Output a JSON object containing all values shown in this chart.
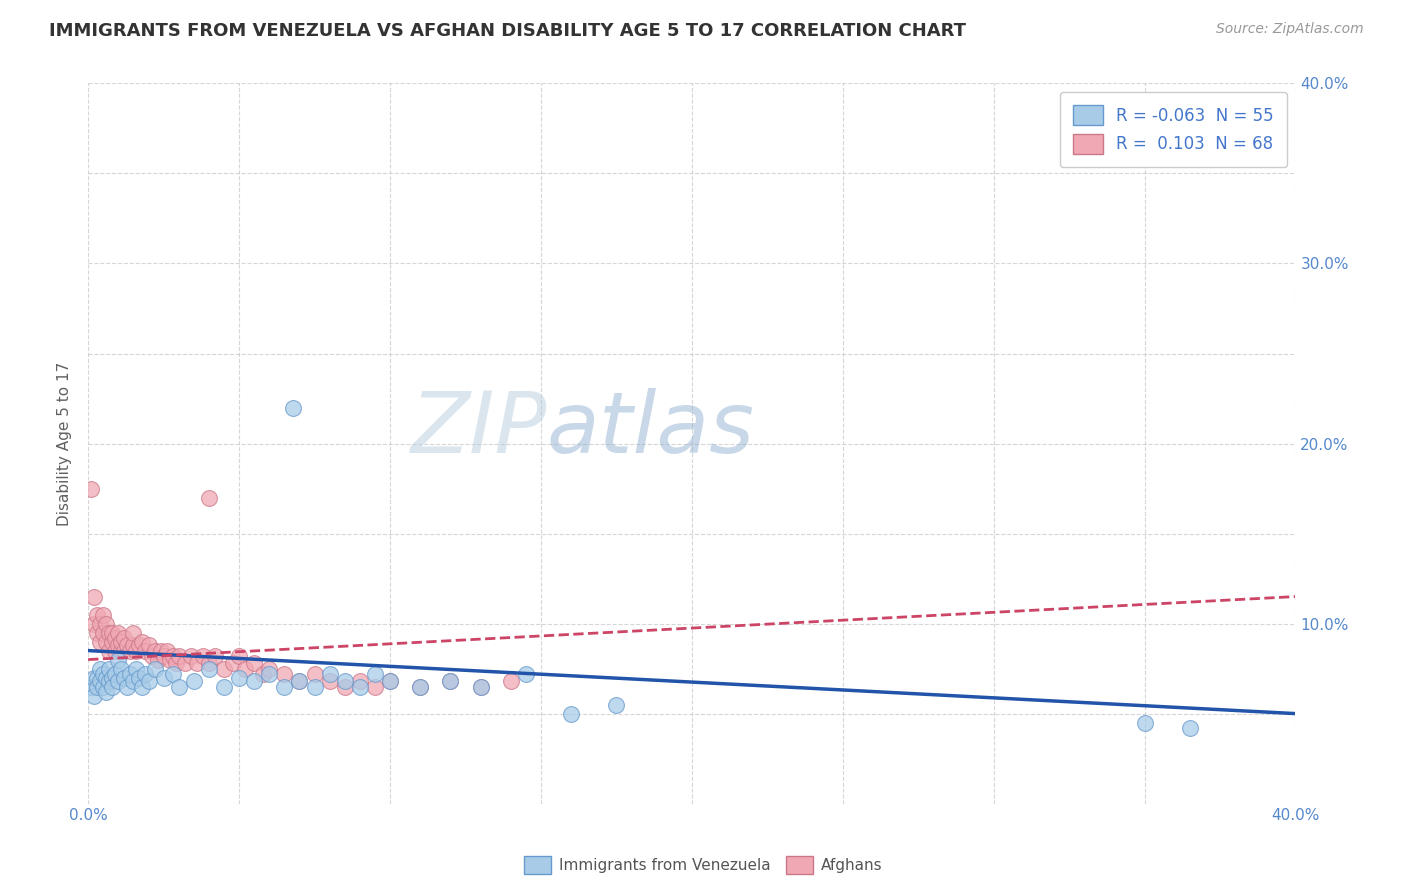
{
  "title": "IMMIGRANTS FROM VENEZUELA VS AFGHAN DISABILITY AGE 5 TO 17 CORRELATION CHART",
  "source": "Source: ZipAtlas.com",
  "ylabel": "Disability Age 5 to 17",
  "xlim": [
    0.0,
    0.4
  ],
  "ylim": [
    0.0,
    0.4
  ],
  "xticks": [
    0.0,
    0.05,
    0.1,
    0.15,
    0.2,
    0.25,
    0.3,
    0.35,
    0.4
  ],
  "yticks": [
    0.0,
    0.05,
    0.1,
    0.15,
    0.2,
    0.25,
    0.3,
    0.35,
    0.4
  ],
  "watermark_zip": "ZIP",
  "watermark_atlas": "atlas",
  "venezuela_color": "#a8cce8",
  "venezuela_edge": "#6699cc",
  "afghan_color": "#f0a8b4",
  "afghan_edge": "#cc7788",
  "venezuela_line_color": "#2255aa",
  "afghan_line_color": "#cc4466",
  "background_color": "#ffffff",
  "grid_color": "#cccccc",
  "title_color": "#333333",
  "tick_color": "#5588cc",
  "venezuela_scatter": [
    [
      0.001,
      0.065
    ],
    [
      0.002,
      0.07
    ],
    [
      0.002,
      0.06
    ],
    [
      0.003,
      0.07
    ],
    [
      0.003,
      0.065
    ],
    [
      0.004,
      0.075
    ],
    [
      0.004,
      0.068
    ],
    [
      0.005,
      0.072
    ],
    [
      0.005,
      0.065
    ],
    [
      0.006,
      0.07
    ],
    [
      0.006,
      0.062
    ],
    [
      0.007,
      0.068
    ],
    [
      0.007,
      0.075
    ],
    [
      0.008,
      0.07
    ],
    [
      0.008,
      0.065
    ],
    [
      0.009,
      0.072
    ],
    [
      0.01,
      0.068
    ],
    [
      0.01,
      0.08
    ],
    [
      0.011,
      0.075
    ],
    [
      0.012,
      0.07
    ],
    [
      0.013,
      0.065
    ],
    [
      0.014,
      0.072
    ],
    [
      0.015,
      0.068
    ],
    [
      0.016,
      0.075
    ],
    [
      0.017,
      0.07
    ],
    [
      0.018,
      0.065
    ],
    [
      0.019,
      0.072
    ],
    [
      0.02,
      0.068
    ],
    [
      0.022,
      0.075
    ],
    [
      0.025,
      0.07
    ],
    [
      0.028,
      0.072
    ],
    [
      0.03,
      0.065
    ],
    [
      0.035,
      0.068
    ],
    [
      0.04,
      0.075
    ],
    [
      0.045,
      0.065
    ],
    [
      0.05,
      0.07
    ],
    [
      0.055,
      0.068
    ],
    [
      0.06,
      0.072
    ],
    [
      0.065,
      0.065
    ],
    [
      0.068,
      0.22
    ],
    [
      0.07,
      0.068
    ],
    [
      0.075,
      0.065
    ],
    [
      0.08,
      0.072
    ],
    [
      0.085,
      0.068
    ],
    [
      0.09,
      0.065
    ],
    [
      0.095,
      0.072
    ],
    [
      0.1,
      0.068
    ],
    [
      0.11,
      0.065
    ],
    [
      0.12,
      0.068
    ],
    [
      0.13,
      0.065
    ],
    [
      0.145,
      0.072
    ],
    [
      0.16,
      0.05
    ],
    [
      0.175,
      0.055
    ],
    [
      0.35,
      0.045
    ],
    [
      0.365,
      0.042
    ]
  ],
  "afghan_scatter": [
    [
      0.001,
      0.175
    ],
    [
      0.002,
      0.115
    ],
    [
      0.002,
      0.1
    ],
    [
      0.003,
      0.105
    ],
    [
      0.003,
      0.095
    ],
    [
      0.004,
      0.1
    ],
    [
      0.004,
      0.09
    ],
    [
      0.005,
      0.095
    ],
    [
      0.005,
      0.105
    ],
    [
      0.006,
      0.09
    ],
    [
      0.006,
      0.1
    ],
    [
      0.007,
      0.095
    ],
    [
      0.007,
      0.085
    ],
    [
      0.008,
      0.09
    ],
    [
      0.008,
      0.095
    ],
    [
      0.009,
      0.085
    ],
    [
      0.009,
      0.092
    ],
    [
      0.01,
      0.088
    ],
    [
      0.01,
      0.095
    ],
    [
      0.011,
      0.085
    ],
    [
      0.011,
      0.09
    ],
    [
      0.012,
      0.085
    ],
    [
      0.012,
      0.092
    ],
    [
      0.013,
      0.088
    ],
    [
      0.014,
      0.085
    ],
    [
      0.015,
      0.088
    ],
    [
      0.015,
      0.095
    ],
    [
      0.016,
      0.085
    ],
    [
      0.017,
      0.088
    ],
    [
      0.018,
      0.09
    ],
    [
      0.019,
      0.085
    ],
    [
      0.02,
      0.088
    ],
    [
      0.021,
      0.082
    ],
    [
      0.022,
      0.085
    ],
    [
      0.023,
      0.08
    ],
    [
      0.024,
      0.085
    ],
    [
      0.025,
      0.082
    ],
    [
      0.026,
      0.085
    ],
    [
      0.027,
      0.08
    ],
    [
      0.028,
      0.082
    ],
    [
      0.029,
      0.078
    ],
    [
      0.03,
      0.082
    ],
    [
      0.032,
      0.078
    ],
    [
      0.034,
      0.082
    ],
    [
      0.036,
      0.078
    ],
    [
      0.038,
      0.082
    ],
    [
      0.04,
      0.078
    ],
    [
      0.042,
      0.082
    ],
    [
      0.045,
      0.075
    ],
    [
      0.048,
      0.078
    ],
    [
      0.05,
      0.082
    ],
    [
      0.052,
      0.075
    ],
    [
      0.055,
      0.078
    ],
    [
      0.058,
      0.072
    ],
    [
      0.06,
      0.075
    ],
    [
      0.065,
      0.072
    ],
    [
      0.07,
      0.068
    ],
    [
      0.075,
      0.072
    ],
    [
      0.08,
      0.068
    ],
    [
      0.085,
      0.065
    ],
    [
      0.09,
      0.068
    ],
    [
      0.095,
      0.065
    ],
    [
      0.1,
      0.068
    ],
    [
      0.11,
      0.065
    ],
    [
      0.12,
      0.068
    ],
    [
      0.13,
      0.065
    ],
    [
      0.14,
      0.068
    ],
    [
      0.04,
      0.17
    ]
  ],
  "ven_line_x0": 0.0,
  "ven_line_x1": 0.4,
  "ven_line_y0": 0.085,
  "ven_line_y1": 0.05,
  "afg_line_x0": 0.0,
  "afg_line_x1": 0.4,
  "afg_line_y0": 0.08,
  "afg_line_y1": 0.115
}
